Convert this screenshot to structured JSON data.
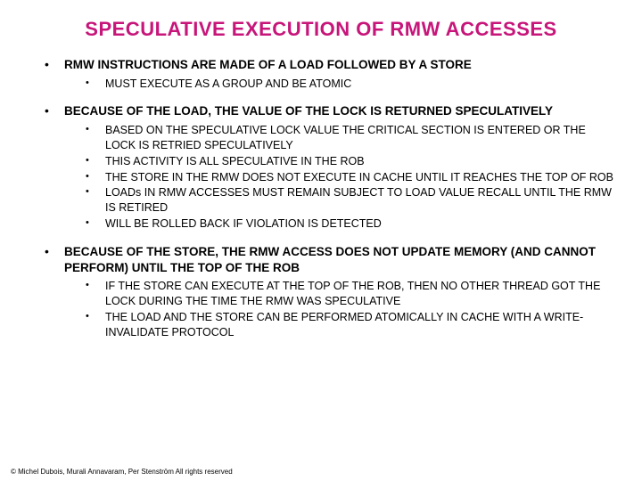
{
  "title": "SPECULATIVE EXECUTION OF RMW ACCESSES",
  "title_color": "#c7157a",
  "title_fontsize": 22,
  "background_color": "#ffffff",
  "text_color": "#000000",
  "font_family": "Comic Sans MS",
  "bullets": [
    {
      "heading": "RMW INSTRUCTIONS ARE MADE OF A LOAD FOLLOWED BY A STORE",
      "sub": [
        "MUST EXECUTE AS A GROUP AND BE ATOMIC"
      ]
    },
    {
      "heading": "BECAUSE OF THE LOAD, THE VALUE OF THE LOCK IS RETURNED SPECULATIVELY",
      "sub": [
        "BASED ON THE SPECULATIVE LOCK VALUE THE CRITICAL SECTION IS ENTERED OR THE LOCK IS RETRIED SPECULATIVELY",
        "THIS ACTIVITY IS ALL SPECULATIVE IN THE ROB",
        "THE STORE IN THE RMW DOES NOT EXECUTE IN CACHE UNTIL IT REACHES THE TOP OF ROB",
        "LOADs IN RMW ACCESSES MUST REMAIN SUBJECT TO LOAD VALUE RECALL UNTIL THE RMW IS RETIRED",
        "WILL BE ROLLED BACK IF VIOLATION IS DETECTED"
      ]
    },
    {
      "heading": "BECAUSE OF THE STORE, THE RMW ACCESS DOES NOT UPDATE MEMORY (AND CANNOT PERFORM) UNTIL THE TOP OF THE ROB",
      "sub": [
        "IF THE STORE CAN EXECUTE AT THE TOP OF THE ROB, THEN NO OTHER THREAD GOT THE LOCK DURING THE TIME THE RMW WAS SPECULATIVE",
        "THE LOAD AND THE STORE CAN BE PERFORMED ATOMICALLY IN CACHE WITH A WRITE-INVALIDATE PROTOCOL"
      ]
    }
  ],
  "footer": "© Michel Dubois, Murali Annavaram, Per Stenström All rights reserved"
}
